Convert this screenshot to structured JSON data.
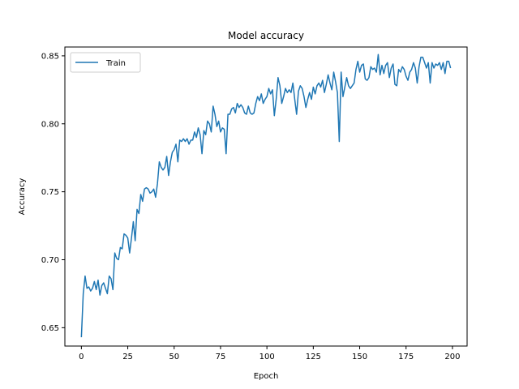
{
  "chart_data": {
    "type": "line",
    "title": "Model accuracy",
    "xlabel": "Epoch",
    "ylabel": "Accuracy",
    "xlim": [
      -8.9,
      207.9
    ],
    "ylim": [
      0.6365,
      0.8565
    ],
    "xticks": [
      0,
      25,
      50,
      75,
      100,
      125,
      150,
      175,
      200
    ],
    "xtick_labels": [
      "0",
      "25",
      "50",
      "75",
      "100",
      "125",
      "150",
      "175",
      "200"
    ],
    "yticks": [
      0.65,
      0.7,
      0.75,
      0.8,
      0.85
    ],
    "ytick_labels": [
      "0.65",
      "0.70",
      "0.75",
      "0.80",
      "0.85"
    ],
    "grid": false,
    "legend": {
      "position": "top-left",
      "entries": [
        "Train"
      ]
    },
    "colors": {
      "series": "#1f77b4",
      "axes": "#000000",
      "background": "#ffffff"
    },
    "series": [
      {
        "name": "Train",
        "x_start": 0,
        "x_step": 1,
        "values": [
          0.643,
          0.675,
          0.688,
          0.679,
          0.68,
          0.677,
          0.679,
          0.684,
          0.678,
          0.685,
          0.674,
          0.681,
          0.683,
          0.679,
          0.675,
          0.688,
          0.686,
          0.678,
          0.705,
          0.701,
          0.7,
          0.709,
          0.708,
          0.719,
          0.718,
          0.716,
          0.705,
          0.716,
          0.728,
          0.714,
          0.737,
          0.734,
          0.748,
          0.743,
          0.752,
          0.753,
          0.752,
          0.749,
          0.75,
          0.752,
          0.746,
          0.756,
          0.772,
          0.768,
          0.766,
          0.768,
          0.776,
          0.762,
          0.772,
          0.779,
          0.781,
          0.785,
          0.772,
          0.788,
          0.787,
          0.789,
          0.787,
          0.789,
          0.785,
          0.788,
          0.788,
          0.794,
          0.79,
          0.797,
          0.792,
          0.778,
          0.795,
          0.792,
          0.802,
          0.8,
          0.794,
          0.813,
          0.807,
          0.798,
          0.802,
          0.794,
          0.797,
          0.796,
          0.778,
          0.807,
          0.807,
          0.811,
          0.812,
          0.808,
          0.815,
          0.812,
          0.814,
          0.812,
          0.808,
          0.807,
          0.813,
          0.808,
          0.807,
          0.808,
          0.815,
          0.82,
          0.817,
          0.822,
          0.815,
          0.818,
          0.82,
          0.826,
          0.822,
          0.825,
          0.806,
          0.818,
          0.834,
          0.828,
          0.815,
          0.82,
          0.826,
          0.823,
          0.825,
          0.823,
          0.83,
          0.818,
          0.807,
          0.824,
          0.828,
          0.826,
          0.82,
          0.812,
          0.818,
          0.823,
          0.818,
          0.827,
          0.822,
          0.828,
          0.83,
          0.827,
          0.832,
          0.823,
          0.829,
          0.836,
          0.83,
          0.825,
          0.838,
          0.831,
          0.823,
          0.787,
          0.838,
          0.82,
          0.827,
          0.834,
          0.828,
          0.826,
          0.828,
          0.83,
          0.84,
          0.846,
          0.838,
          0.843,
          0.844,
          0.833,
          0.832,
          0.834,
          0.842,
          0.84,
          0.841,
          0.838,
          0.851,
          0.836,
          0.843,
          0.837,
          0.843,
          0.845,
          0.834,
          0.841,
          0.844,
          0.829,
          0.828,
          0.84,
          0.838,
          0.842,
          0.84,
          0.835,
          0.832,
          0.838,
          0.84,
          0.845,
          0.841,
          0.83,
          0.842,
          0.849,
          0.849,
          0.845,
          0.841,
          0.845,
          0.83,
          0.845,
          0.841,
          0.844,
          0.843,
          0.845,
          0.84,
          0.845,
          0.837,
          0.846,
          0.846,
          0.841
        ]
      }
    ]
  }
}
